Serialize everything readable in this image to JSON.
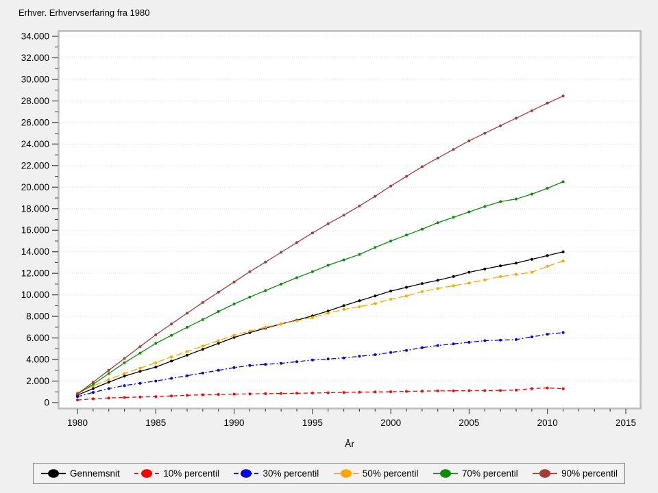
{
  "title": "Erhver. Erhvervserfaring fra 1980",
  "colors": {
    "page_background": "#f0f0f0",
    "plot_background": "#ffffff",
    "frame": "#a0a0a0",
    "grid": "#e0e0e0",
    "tick": "#3a3a3a"
  },
  "chart_data": {
    "type": "line",
    "title": "Erhver. Erhvervserfaring fra 1980",
    "xlabel": "År",
    "ylabel": "",
    "xlim": [
      1978.8,
      2015.9
    ],
    "ylim": [
      0,
      34000
    ],
    "grid": "horizontal-dotted",
    "legend_position": "bottom",
    "xticks": [
      1980,
      1985,
      1990,
      1995,
      2000,
      2005,
      2010,
      2015
    ],
    "xtick_labels": [
      "1980",
      "1985",
      "1990",
      "1995",
      "2000",
      "2005",
      "2010",
      "2015"
    ],
    "ytick_step": 2000,
    "ytick_labels": [
      "0",
      "2.000",
      "4.000",
      "6.000",
      "8.000",
      "10.000",
      "12.000",
      "14.000",
      "16.000",
      "18.000",
      "20.000",
      "22.000",
      "24.000",
      "26.000",
      "28.000",
      "30.000",
      "32.000",
      "34.000"
    ],
    "x": [
      1980,
      1981,
      1982,
      1983,
      1984,
      1985,
      1986,
      1987,
      1988,
      1989,
      1990,
      1991,
      1992,
      1993,
      1994,
      1995,
      1996,
      1997,
      1998,
      1999,
      2000,
      2001,
      2002,
      2003,
      2004,
      2005,
      2006,
      2007,
      2008,
      2009,
      2010,
      2011
    ],
    "series": [
      {
        "name": "Gennemsnit",
        "color": "#000000",
        "dash": "",
        "values": [
          700,
          1300,
          1900,
          2450,
          2900,
          3300,
          3850,
          4400,
          4950,
          5500,
          6050,
          6500,
          6900,
          7300,
          7650,
          8050,
          8500,
          9000,
          9450,
          9900,
          10350,
          10700,
          11050,
          11350,
          11700,
          12100,
          12400,
          12700,
          12950,
          13300,
          13650,
          14000
        ]
      },
      {
        "name": "10% percentil",
        "color": "#ff0000",
        "dash": "6 4",
        "values": [
          250,
          350,
          430,
          480,
          520,
          560,
          620,
          680,
          730,
          760,
          790,
          810,
          830,
          850,
          870,
          890,
          920,
          950,
          970,
          990,
          1010,
          1040,
          1070,
          1090,
          1100,
          1110,
          1120,
          1130,
          1160,
          1300,
          1360,
          1290
        ]
      },
      {
        "name": "30% percentil",
        "color": "#0000e0",
        "dash": "7 3 2 3",
        "values": [
          550,
          950,
          1300,
          1580,
          1800,
          2000,
          2250,
          2500,
          2750,
          3000,
          3250,
          3450,
          3550,
          3650,
          3800,
          3950,
          4050,
          4150,
          4300,
          4450,
          4650,
          4850,
          5100,
          5300,
          5450,
          5600,
          5750,
          5800,
          5850,
          6100,
          6350,
          6500
        ]
      },
      {
        "name": "50% percentil",
        "color": "#ffa500",
        "dash": "10 4",
        "values": [
          900,
          1550,
          2150,
          2700,
          3200,
          3700,
          4250,
          4750,
          5250,
          5750,
          6250,
          6650,
          7000,
          7300,
          7600,
          7900,
          8300,
          8650,
          8900,
          9200,
          9600,
          9900,
          10300,
          10600,
          10850,
          11100,
          11400,
          11700,
          11900,
          12100,
          12650,
          13150
        ]
      },
      {
        "name": "70% percentil",
        "color": "#0b8a0b",
        "dash": "",
        "values": [
          800,
          1700,
          2700,
          3700,
          4600,
          5500,
          6250,
          7000,
          7700,
          8450,
          9150,
          9800,
          10400,
          11000,
          11600,
          12150,
          12750,
          13250,
          13750,
          14400,
          15000,
          15550,
          16100,
          16700,
          17200,
          17700,
          18200,
          18650,
          18900,
          19350,
          19900,
          20500
        ]
      },
      {
        "name": "90% percentil",
        "color": "#a33c36",
        "dash": "",
        "values": [
          800,
          1900,
          3000,
          4100,
          5200,
          6300,
          7300,
          8300,
          9300,
          10250,
          11200,
          12150,
          13050,
          13950,
          14850,
          15750,
          16600,
          17400,
          18250,
          19150,
          20100,
          21000,
          21900,
          22700,
          23500,
          24300,
          25000,
          25700,
          26400,
          27100,
          27800,
          28450
        ]
      }
    ]
  }
}
